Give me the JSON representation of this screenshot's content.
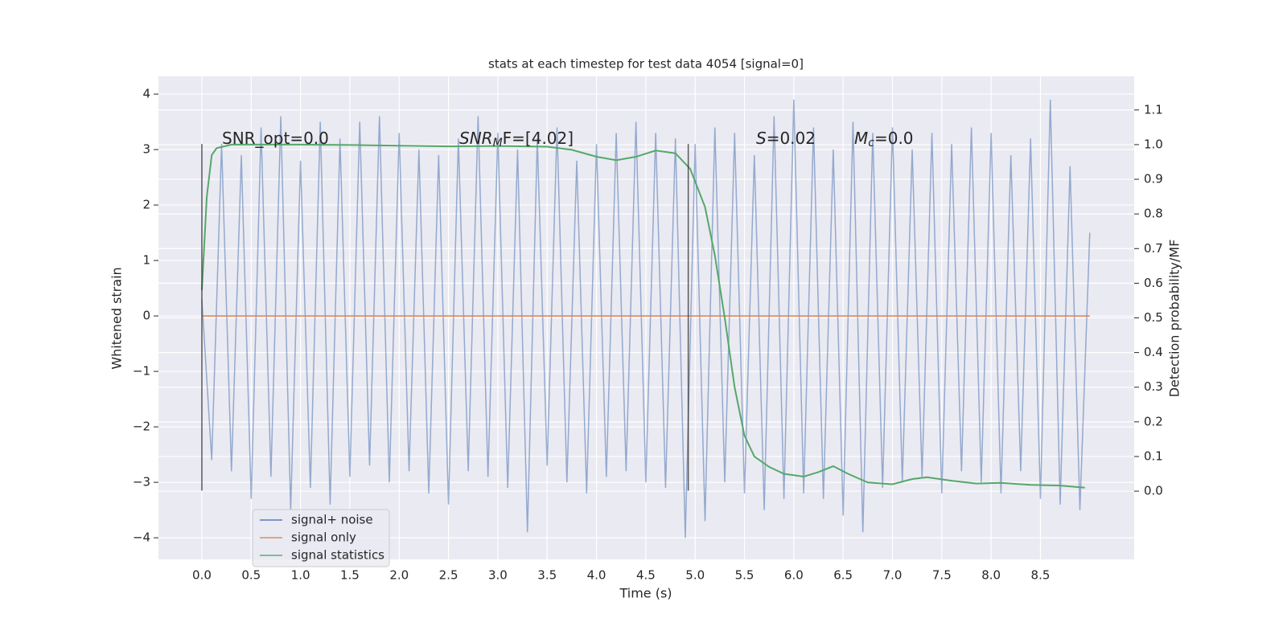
{
  "chart_data": {
    "type": "line",
    "title": "stats at each timestep for test data 4054 [signal=0]",
    "xlabel": "Time (s)",
    "ylabel": "Whitened strain",
    "y2label": "Detection probability/MF",
    "xlim": [
      -0.44,
      9.45
    ],
    "ylim": [
      -4.39,
      4.32
    ],
    "y2lim": [
      -0.197,
      1.197
    ],
    "xticks": [
      {
        "value": 0,
        "label": "0.0"
      },
      0.5,
      {
        "value": 1,
        "label": "1.0"
      },
      1.5,
      {
        "value": 2,
        "label": "2.0"
      },
      2.5,
      {
        "value": 3,
        "label": "3.0"
      },
      3.5,
      {
        "value": 4,
        "label": "4.0"
      },
      4.5,
      {
        "value": 5,
        "label": "5.0"
      },
      5.5,
      {
        "value": 6,
        "label": "6.0"
      },
      6.5,
      {
        "value": 7,
        "label": "7.0"
      },
      7.5,
      {
        "value": 8,
        "label": "8.0"
      },
      8.5
    ],
    "yticks": [
      {
        "value": -4,
        "label": "−4"
      },
      {
        "value": -3,
        "label": "−3"
      },
      {
        "value": -2,
        "label": "−2"
      },
      {
        "value": -1,
        "label": "−1"
      },
      0,
      1,
      2,
      3,
      4
    ],
    "y2ticks": [
      {
        "value": 0,
        "label": "0.0"
      },
      0.1,
      0.2,
      0.3,
      0.4,
      0.5,
      0.6,
      0.7,
      0.8,
      0.9,
      {
        "value": 1,
        "label": "1.0"
      },
      1.1
    ],
    "grid": true,
    "legend": "lower left",
    "series": [
      {
        "name": "signal+ noise",
        "color": "#4c72b0",
        "x": [
          0,
          0.1,
          0.2,
          0.3,
          0.4,
          0.5,
          0.6,
          0.7,
          0.8,
          0.9,
          1,
          1.1,
          1.2,
          1.3,
          1.4,
          1.5,
          1.6,
          1.7,
          1.8,
          1.9,
          2,
          2.1,
          2.2,
          2.3,
          2.4,
          2.5,
          2.6,
          2.7,
          2.8,
          2.9,
          3,
          3.1,
          3.2,
          3.3,
          3.4,
          3.5,
          3.6,
          3.7,
          3.8,
          3.9,
          4,
          4.1,
          4.2,
          4.3,
          4.4,
          4.5,
          4.6,
          4.7,
          4.8,
          4.9,
          5,
          5.1,
          5.2,
          5.3,
          5.4,
          5.5,
          5.6,
          5.7,
          5.8,
          5.9,
          6,
          6.1,
          6.2,
          6.3,
          6.4,
          6.5,
          6.6,
          6.7,
          6.8,
          6.9,
          7,
          7.1,
          7.2,
          7.3,
          7.4,
          7.5,
          7.6,
          7.7,
          7.8,
          7.9,
          8,
          8.1,
          8.2,
          8.3,
          8.4,
          8.5,
          8.6,
          8.7,
          8.8,
          8.9,
          9
        ],
        "values": [
          0.3,
          -2.6,
          3.1,
          -2.8,
          2.9,
          -3.3,
          3.4,
          -2.9,
          3.6,
          -3.5,
          2.8,
          -3.1,
          3.5,
          -3.4,
          3.2,
          -2.9,
          3.5,
          -2.7,
          3.6,
          -3.0,
          3.3,
          -2.8,
          3.0,
          -3.2,
          2.9,
          -3.4,
          3.2,
          -2.8,
          3.6,
          -2.9,
          3.3,
          -3.1,
          3.0,
          -3.9,
          3.2,
          -2.7,
          3.4,
          -3.0,
          2.8,
          -3.2,
          3.1,
          -2.9,
          3.3,
          -2.8,
          3.5,
          -3.0,
          3.3,
          -3.1,
          3.2,
          -4.0,
          3.1,
          -3.7,
          3.4,
          -3.0,
          3.3,
          -3.2,
          2.9,
          -3.5,
          3.6,
          -3.3,
          3.9,
          -3.2,
          3.4,
          -3.3,
          3.0,
          -3.6,
          3.5,
          -3.9,
          3.3,
          -3.1,
          3.4,
          -3.0,
          3.0,
          -2.9,
          3.3,
          -3.2,
          3.1,
          -2.8,
          3.4,
          -3.0,
          3.3,
          -3.2,
          2.9,
          -2.8,
          3.2,
          -3.3,
          3.9,
          -3.4,
          2.7,
          -3.5,
          1.5
        ]
      },
      {
        "name": "signal only",
        "color": "#dd8452",
        "x": [
          0,
          9
        ],
        "values": [
          0,
          0
        ]
      },
      {
        "name": "signal statistics",
        "color": "#55a868",
        "axis": "y2",
        "x": [
          0,
          0.05,
          0.1,
          0.15,
          0.3,
          1,
          1.5,
          2,
          2.5,
          3,
          3.5,
          3.75,
          4,
          4.2,
          4.4,
          4.6,
          4.8,
          4.95,
          5.1,
          5.2,
          5.3,
          5.4,
          5.5,
          5.6,
          5.75,
          5.9,
          6.1,
          6.25,
          6.4,
          6.55,
          6.75,
          7,
          7.2,
          7.35,
          7.6,
          7.85,
          8.1,
          8.4,
          8.7,
          8.95
        ],
        "values": [
          0.58,
          0.85,
          0.97,
          0.99,
          1,
          1,
          0.999,
          0.997,
          0.995,
          0.996,
          0.994,
          0.985,
          0.965,
          0.955,
          0.965,
          0.983,
          0.975,
          0.93,
          0.82,
          0.68,
          0.5,
          0.3,
          0.16,
          0.1,
          0.07,
          0.05,
          0.042,
          0.055,
          0.072,
          0.05,
          0.025,
          0.02,
          0.035,
          0.04,
          0.03,
          0.022,
          0.024,
          0.018,
          0.016,
          0.01
        ]
      }
    ],
    "vlines": [
      {
        "x": 0,
        "ymin": -3.15,
        "ymax": 3.1,
        "color": "#333333"
      },
      {
        "x": 4.93,
        "ymin": -3.15,
        "ymax": 3.1,
        "color": "#333333"
      }
    ],
    "annotations": [
      {
        "text": "SNR_opt=0.0"
      },
      {
        "italic": "SNR",
        "sub": "M",
        "text": "F=[4.02]"
      },
      {
        "italic": "S",
        "text": "=0.02"
      },
      {
        "italic": "M",
        "sub": "c",
        "text": "=0.0"
      }
    ]
  }
}
